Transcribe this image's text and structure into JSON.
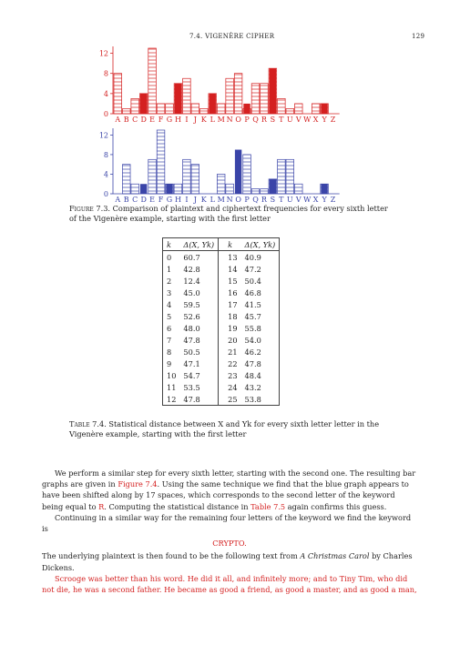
{
  "header": {
    "section": "7.4. VIGENÈRE CIPHER",
    "page": "129"
  },
  "figure": {
    "caption_label": "Figure 7.3.",
    "caption_text": "Comparison of plaintext and ciphertext frequencies for every sixth letter of the Vigenère example, starting with the first letter"
  },
  "chart_data": [
    {
      "type": "bar",
      "title": "",
      "xlabel": "",
      "ylabel": "",
      "categories": [
        "A",
        "B",
        "C",
        "D",
        "E",
        "F",
        "G",
        "H",
        "I",
        "J",
        "K",
        "L",
        "M",
        "N",
        "O",
        "P",
        "Q",
        "R",
        "S",
        "T",
        "U",
        "V",
        "W",
        "X",
        "Y",
        "Z"
      ],
      "ylim": [
        0,
        13
      ],
      "yticks": [
        "0",
        "4",
        "8",
        "12"
      ],
      "series": [
        {
          "style": "hatched",
          "color": "#d42020",
          "values": [
            8,
            1,
            3,
            4,
            13,
            2,
            2,
            6,
            7,
            2,
            1,
            4,
            2,
            7,
            8,
            1,
            6,
            6,
            9,
            3,
            1,
            2,
            0,
            2,
            2,
            0
          ]
        },
        {
          "style": "solid",
          "color": "#d42020",
          "values": [
            0,
            0,
            0,
            4,
            0,
            0,
            0,
            6,
            0,
            0,
            0,
            4,
            0,
            0,
            0,
            2,
            0,
            0,
            9,
            0,
            0,
            0,
            0,
            0,
            2,
            0
          ]
        }
      ]
    },
    {
      "type": "bar",
      "title": "",
      "xlabel": "",
      "ylabel": "",
      "categories": [
        "A",
        "B",
        "C",
        "D",
        "E",
        "F",
        "G",
        "H",
        "I",
        "J",
        "K",
        "L",
        "M",
        "N",
        "O",
        "P",
        "Q",
        "R",
        "S",
        "T",
        "U",
        "V",
        "W",
        "X",
        "Y",
        "Z"
      ],
      "ylim": [
        0,
        13
      ],
      "yticks": [
        "0",
        "4",
        "8",
        "12"
      ],
      "series": [
        {
          "style": "hatched",
          "color": "#3a44a8",
          "values": [
            0,
            6,
            2,
            0,
            7,
            13,
            2,
            2,
            7,
            6,
            0,
            0,
            4,
            2,
            0,
            8,
            1,
            1,
            3,
            7,
            7,
            2,
            0,
            0,
            2,
            0
          ]
        },
        {
          "style": "solid",
          "color": "#3a44a8",
          "values": [
            0,
            0,
            0,
            2,
            0,
            0,
            2,
            0,
            0,
            0,
            0,
            0,
            0,
            0,
            9,
            0,
            0,
            0,
            3,
            0,
            0,
            0,
            0,
            0,
            2,
            0
          ]
        }
      ]
    }
  ],
  "table": {
    "caption_label": "Table 7.4.",
    "caption_text": "Statistical distance between X and Yk for every sixth letter letter in the Vigenère example, starting with the first letter",
    "col_k": "k",
    "col_delta": "Δ(X, Yk)",
    "rows": [
      [
        "0",
        "60.7",
        "13",
        "40.9"
      ],
      [
        "1",
        "42.8",
        "14",
        "47.2"
      ],
      [
        "2",
        "12.4",
        "15",
        "50.4"
      ],
      [
        "3",
        "45.0",
        "16",
        "46.8"
      ],
      [
        "4",
        "59.5",
        "17",
        "41.5"
      ],
      [
        "5",
        "52.6",
        "18",
        "45.7"
      ],
      [
        "6",
        "48.0",
        "19",
        "55.8"
      ],
      [
        "7",
        "47.8",
        "20",
        "54.0"
      ],
      [
        "8",
        "50.5",
        "21",
        "46.2"
      ],
      [
        "9",
        "47.1",
        "22",
        "47.8"
      ],
      [
        "10",
        "54.7",
        "23",
        "48.4"
      ],
      [
        "11",
        "53.5",
        "24",
        "43.2"
      ],
      [
        "12",
        "47.8",
        "25",
        "53.8"
      ]
    ]
  },
  "text": {
    "p1_a": "We perform a similar step for every sixth letter, starting with the second one. The resulting bar graphs are given in ",
    "p1_link1": "Figure 7.4",
    "p1_b": ". Using the same technique we find that the blue graph appears to have been shifted along by 17 spaces, which corresponds to the second letter of the keyword being equal to ",
    "p1_link2": "R",
    "p1_c": ". Computing the statistical distance in ",
    "p1_link3": "Table 7.5",
    "p1_d": " again confirms this guess.",
    "p2": "Continuing in a similar way for the remaining four letters of the keyword we find the keyword is",
    "keyword": "CRYPTO.",
    "p3_a": "The underlying plaintext is then found to be the following text from ",
    "p3_title": "A Christmas Carol",
    "p3_b": " by Charles Dickens.",
    "quote": "Scrooge was better than his word. He did it all, and infinitely more; and to Tiny Tim, who did not die, he was a second father. He became as good a friend, as good a master, and as good a man,"
  },
  "colors": {
    "red": "#d42020",
    "blue": "#3a44a8",
    "text": "#222222"
  }
}
